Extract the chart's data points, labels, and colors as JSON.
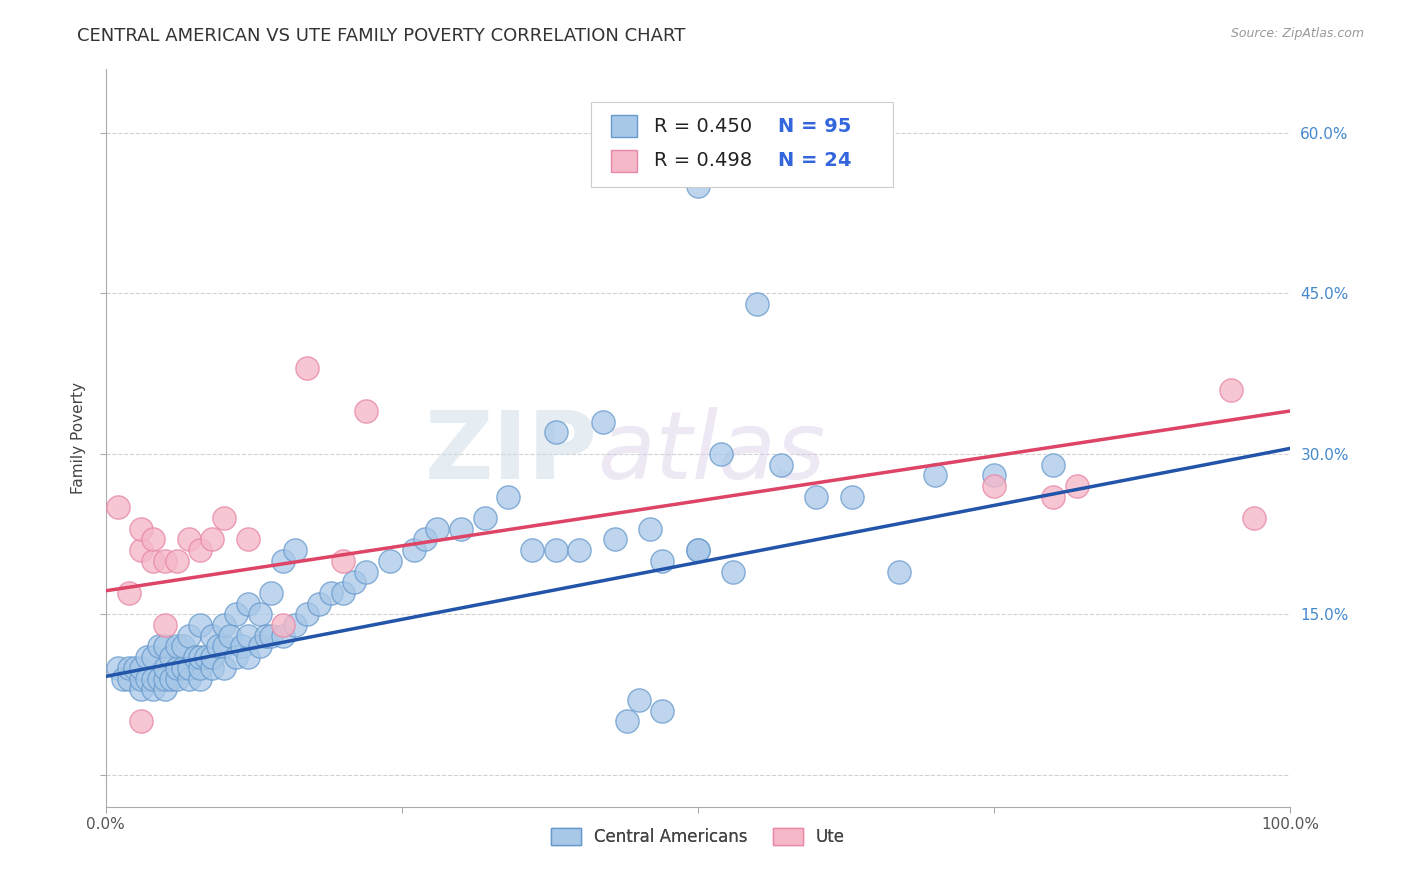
{
  "title": "CENTRAL AMERICAN VS UTE FAMILY POVERTY CORRELATION CHART",
  "source": "Source: ZipAtlas.com",
  "ylabel": "Family Poverty",
  "xlim": [
    0,
    1
  ],
  "ylim": [
    -0.03,
    0.66
  ],
  "x_ticks": [
    0.0,
    0.25,
    0.5,
    0.75,
    1.0
  ],
  "x_tick_labels": [
    "0.0%",
    "",
    "",
    "",
    "100.0%"
  ],
  "y_ticks": [
    0.0,
    0.15,
    0.3,
    0.45,
    0.6
  ],
  "y_tick_labels": [
    "",
    "15.0%",
    "30.0%",
    "45.0%",
    "60.0%"
  ],
  "blue_color": "#a8c8e8",
  "blue_edge_color": "#6699cc",
  "pink_color": "#f4b8c8",
  "pink_edge_color": "#e888a8",
  "blue_line_color": "#2255aa",
  "pink_line_color": "#dd4466",
  "background_color": "#ffffff",
  "grid_color": "#cccccc",
  "blue_scatter_x": [
    0.01,
    0.015,
    0.02,
    0.02,
    0.025,
    0.03,
    0.03,
    0.03,
    0.035,
    0.035,
    0.04,
    0.04,
    0.04,
    0.045,
    0.045,
    0.05,
    0.05,
    0.05,
    0.05,
    0.055,
    0.055,
    0.06,
    0.06,
    0.06,
    0.065,
    0.065,
    0.07,
    0.07,
    0.07,
    0.075,
    0.08,
    0.08,
    0.08,
    0.08,
    0.085,
    0.09,
    0.09,
    0.09,
    0.095,
    0.1,
    0.1,
    0.1,
    0.105,
    0.11,
    0.11,
    0.115,
    0.12,
    0.12,
    0.12,
    0.13,
    0.13,
    0.135,
    0.14,
    0.14,
    0.15,
    0.15,
    0.16,
    0.16,
    0.17,
    0.18,
    0.19,
    0.2,
    0.21,
    0.22,
    0.24,
    0.26,
    0.27,
    0.28,
    0.3,
    0.32,
    0.34,
    0.36,
    0.38,
    0.4,
    0.43,
    0.46,
    0.5,
    0.52,
    0.38,
    0.42,
    0.47,
    0.5,
    0.53,
    0.57,
    0.6,
    0.63,
    0.67,
    0.7,
    0.75,
    0.8,
    0.5,
    0.55,
    0.45,
    0.47,
    0.44
  ],
  "blue_scatter_y": [
    0.1,
    0.09,
    0.09,
    0.1,
    0.1,
    0.08,
    0.09,
    0.1,
    0.09,
    0.11,
    0.08,
    0.09,
    0.11,
    0.09,
    0.12,
    0.08,
    0.09,
    0.1,
    0.12,
    0.09,
    0.11,
    0.09,
    0.1,
    0.12,
    0.1,
    0.12,
    0.09,
    0.1,
    0.13,
    0.11,
    0.09,
    0.1,
    0.11,
    0.14,
    0.11,
    0.1,
    0.11,
    0.13,
    0.12,
    0.1,
    0.12,
    0.14,
    0.13,
    0.11,
    0.15,
    0.12,
    0.11,
    0.13,
    0.16,
    0.12,
    0.15,
    0.13,
    0.13,
    0.17,
    0.13,
    0.2,
    0.14,
    0.21,
    0.15,
    0.16,
    0.17,
    0.17,
    0.18,
    0.19,
    0.2,
    0.21,
    0.22,
    0.23,
    0.23,
    0.24,
    0.26,
    0.21,
    0.21,
    0.21,
    0.22,
    0.23,
    0.21,
    0.3,
    0.32,
    0.33,
    0.2,
    0.21,
    0.19,
    0.29,
    0.26,
    0.26,
    0.19,
    0.28,
    0.28,
    0.29,
    0.55,
    0.44,
    0.07,
    0.06,
    0.05
  ],
  "pink_scatter_x": [
    0.01,
    0.02,
    0.03,
    0.03,
    0.04,
    0.04,
    0.05,
    0.05,
    0.06,
    0.07,
    0.08,
    0.09,
    0.1,
    0.12,
    0.15,
    0.17,
    0.2,
    0.22,
    0.75,
    0.8,
    0.82,
    0.95,
    0.97,
    0.03
  ],
  "pink_scatter_y": [
    0.25,
    0.17,
    0.21,
    0.23,
    0.2,
    0.22,
    0.2,
    0.14,
    0.2,
    0.22,
    0.21,
    0.22,
    0.24,
    0.22,
    0.14,
    0.38,
    0.2,
    0.34,
    0.27,
    0.26,
    0.27,
    0.36,
    0.24,
    0.05
  ],
  "blue_line_y_start": 0.092,
  "blue_line_y_end": 0.305,
  "pink_line_y_start": 0.172,
  "pink_line_y_end": 0.34,
  "watermark_zip": "ZIP",
  "watermark_atlas": "atlas",
  "title_fontsize": 13,
  "axis_label_fontsize": 11,
  "tick_fontsize": 11,
  "legend_fontsize": 14
}
